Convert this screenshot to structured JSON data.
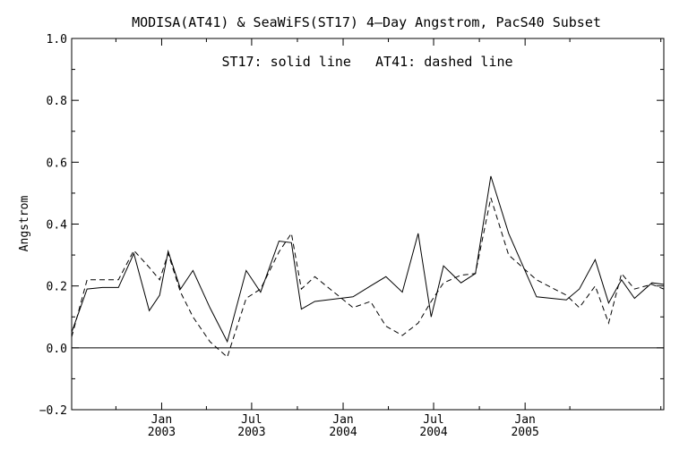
{
  "chart_data": {
    "type": "line",
    "title": "MODISA(AT41) & SeaWiFS(ST17) 4–Day Angstrom, PacS40 Subset",
    "annotation": "ST17: solid line   AT41: dashed line",
    "xlabel": "",
    "ylabel": "Angstrom",
    "ylim": [
      -0.2,
      1.0
    ],
    "yticks": [
      {
        "value": -0.2,
        "label": "−0.2"
      },
      {
        "value": 0.0,
        "label": "0.0"
      },
      {
        "value": 0.2,
        "label": "0.2"
      },
      {
        "value": 0.4,
        "label": "0.4"
      },
      {
        "value": 0.6,
        "label": "0.6"
      },
      {
        "value": 0.8,
        "label": "0.8"
      },
      {
        "value": 1.0,
        "label": "1.0"
      }
    ],
    "xlim": [
      "2002-07-04",
      "2005-10-07"
    ],
    "xticks": [
      {
        "date": "2003-01-01",
        "label1": "Jan",
        "label2": "2003"
      },
      {
        "date": "2003-07-01",
        "label1": "Jul",
        "label2": "2003"
      },
      {
        "date": "2004-01-01",
        "label1": "Jan",
        "label2": "2004"
      },
      {
        "date": "2004-07-01",
        "label1": "Jul",
        "label2": "2004"
      },
      {
        "date": "2005-01-01",
        "label1": "Jan",
        "label2": "2005"
      }
    ],
    "minor_ticks": [
      "2002-10-01",
      "2003-04-01",
      "2003-10-01",
      "2004-04-01",
      "2004-10-01",
      "2005-04-01",
      "2005-10-01"
    ],
    "zero_line": 0.0,
    "series": [
      {
        "line_style": "solid",
        "x": [
          "2002-07-04",
          "2002-08-04",
          "2002-09-04",
          "2002-10-06",
          "2002-11-06",
          "2002-12-07",
          "2002-12-28",
          "2003-01-14",
          "2003-02-08",
          "2003-03-05",
          "2003-04-08",
          "2003-05-13",
          "2003-06-20",
          "2003-07-19",
          "2003-08-25",
          "2003-09-19",
          "2003-10-09",
          "2003-11-05",
          "2004-01-21",
          "2004-02-25",
          "2004-03-27",
          "2004-04-29",
          "2004-05-31",
          "2004-06-26",
          "2004-07-21",
          "2004-08-25",
          "2004-09-23",
          "2004-10-24",
          "2004-11-29",
          "2005-01-24",
          "2005-03-25",
          "2005-04-20",
          "2005-05-22",
          "2005-06-18",
          "2005-07-14",
          "2005-08-09",
          "2005-09-13",
          "2005-10-07"
        ],
        "y": [
          0.05,
          0.19,
          0.195,
          0.195,
          0.305,
          0.12,
          0.17,
          0.312,
          0.19,
          0.25,
          0.13,
          0.02,
          0.25,
          0.18,
          0.345,
          0.34,
          0.125,
          0.15,
          0.165,
          0.2,
          0.23,
          0.18,
          0.37,
          0.1,
          0.265,
          0.21,
          0.24,
          0.555,
          0.37,
          0.165,
          0.155,
          0.19,
          0.285,
          0.145,
          0.22,
          0.16,
          0.21,
          0.205
        ]
      },
      {
        "line_style": "dashed",
        "x": [
          "2002-07-04",
          "2002-08-04",
          "2002-09-04",
          "2002-10-06",
          "2002-11-06",
          "2002-12-07",
          "2002-12-28",
          "2003-01-14",
          "2003-02-08",
          "2003-03-05",
          "2003-04-08",
          "2003-05-13",
          "2003-06-20",
          "2003-07-19",
          "2003-08-25",
          "2003-09-19",
          "2003-10-09",
          "2003-11-05",
          "2004-01-21",
          "2004-02-25",
          "2004-03-27",
          "2004-04-29",
          "2004-05-31",
          "2004-06-26",
          "2004-07-21",
          "2004-08-25",
          "2004-09-23",
          "2004-10-24",
          "2004-11-29",
          "2005-01-24",
          "2005-03-25",
          "2005-04-20",
          "2005-05-22",
          "2005-06-18",
          "2005-07-14",
          "2005-08-09",
          "2005-09-13",
          "2005-10-07"
        ],
        "y": [
          0.035,
          0.22,
          0.22,
          0.22,
          0.315,
          0.26,
          0.22,
          0.305,
          0.18,
          0.1,
          0.02,
          -0.03,
          0.16,
          0.19,
          0.31,
          0.37,
          0.19,
          0.23,
          0.13,
          0.15,
          0.07,
          0.04,
          0.08,
          0.15,
          0.21,
          0.235,
          0.24,
          0.485,
          0.3,
          0.22,
          0.17,
          0.13,
          0.2,
          0.08,
          0.24,
          0.19,
          0.205,
          0.19
        ]
      }
    ]
  }
}
